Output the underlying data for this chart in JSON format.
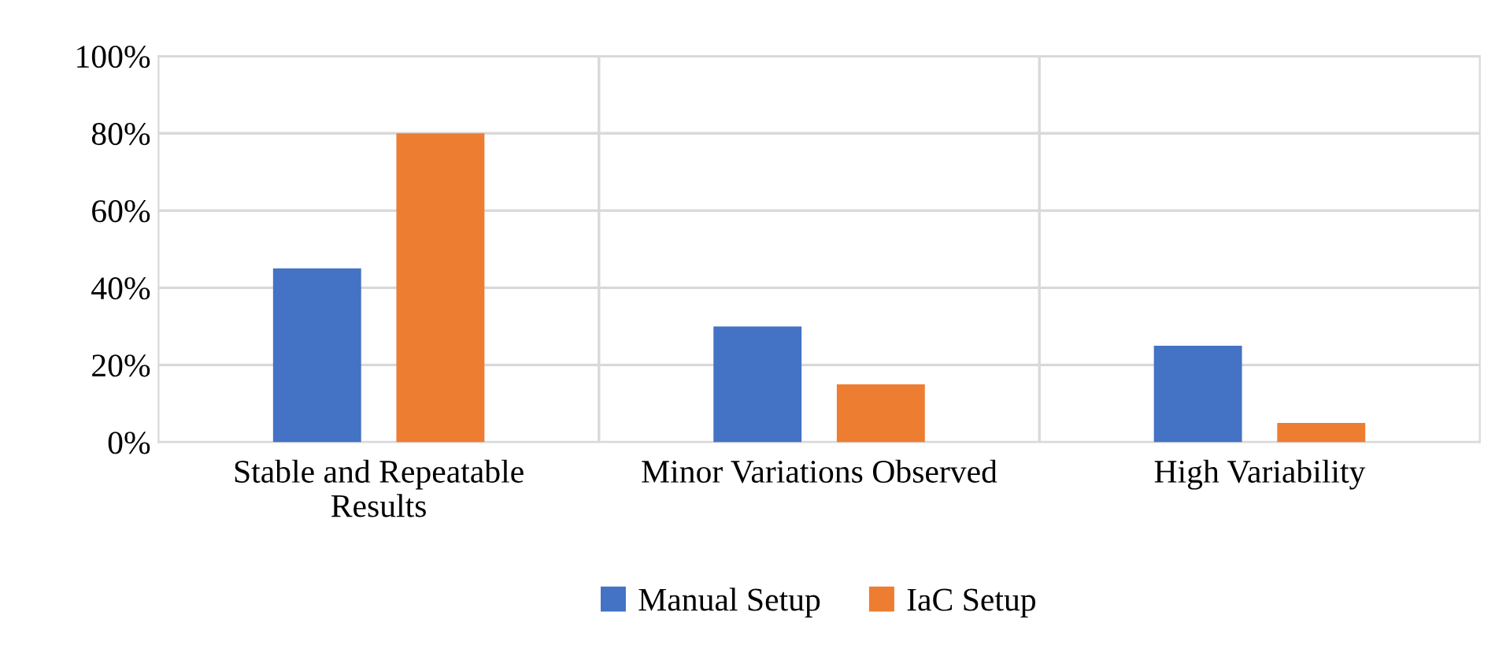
{
  "chart_data": {
    "type": "bar",
    "categories": [
      "Stable and Repeatable\nResults",
      "Minor Variations Observed",
      "High Variability"
    ],
    "series": [
      {
        "name": "Manual Setup",
        "color": "#4472c4",
        "values": [
          45,
          30,
          25
        ]
      },
      {
        "name": "IaC Setup",
        "color": "#ed7d31",
        "values": [
          80,
          15,
          5
        ]
      }
    ],
    "ylim": [
      0,
      100
    ],
    "yticks": [
      {
        "value": 0,
        "label": "0%"
      },
      {
        "value": 20,
        "label": "20%"
      },
      {
        "value": 40,
        "label": "40%"
      },
      {
        "value": 60,
        "label": "60%"
      },
      {
        "value": 80,
        "label": "80%"
      },
      {
        "value": 100,
        "label": "100%"
      }
    ],
    "grid": true,
    "legend": "bottom"
  }
}
